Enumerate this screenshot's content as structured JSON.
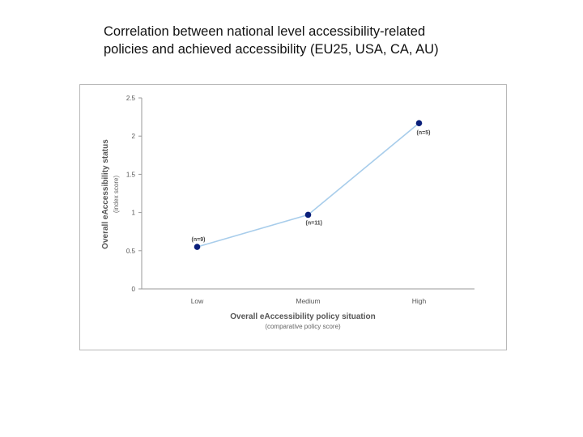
{
  "title": "Correlation between national level accessibility-related\npolicies  and achieved accessibility (EU25, USA, CA, AU)",
  "chart_data": {
    "type": "line",
    "categories": [
      "Low",
      "Medium",
      "High"
    ],
    "values": [
      0.55,
      0.97,
      2.17
    ],
    "data_labels": [
      "(n=9)",
      "(n=11)",
      "(n=5)"
    ],
    "xlabel": "Overall eAccessibility policy situation",
    "xlabel_sub": "(comparative policy score)",
    "ylabel": "Overall eAccessibility status",
    "ylabel_sub": "(index score)",
    "ylim": [
      0,
      2.5
    ],
    "yticks": [
      "0",
      "0.5",
      "1",
      "1.5",
      "2",
      "2.5"
    ],
    "grid": false,
    "line_color": "#a8cdeb",
    "marker_color": "#0a1f7a"
  }
}
